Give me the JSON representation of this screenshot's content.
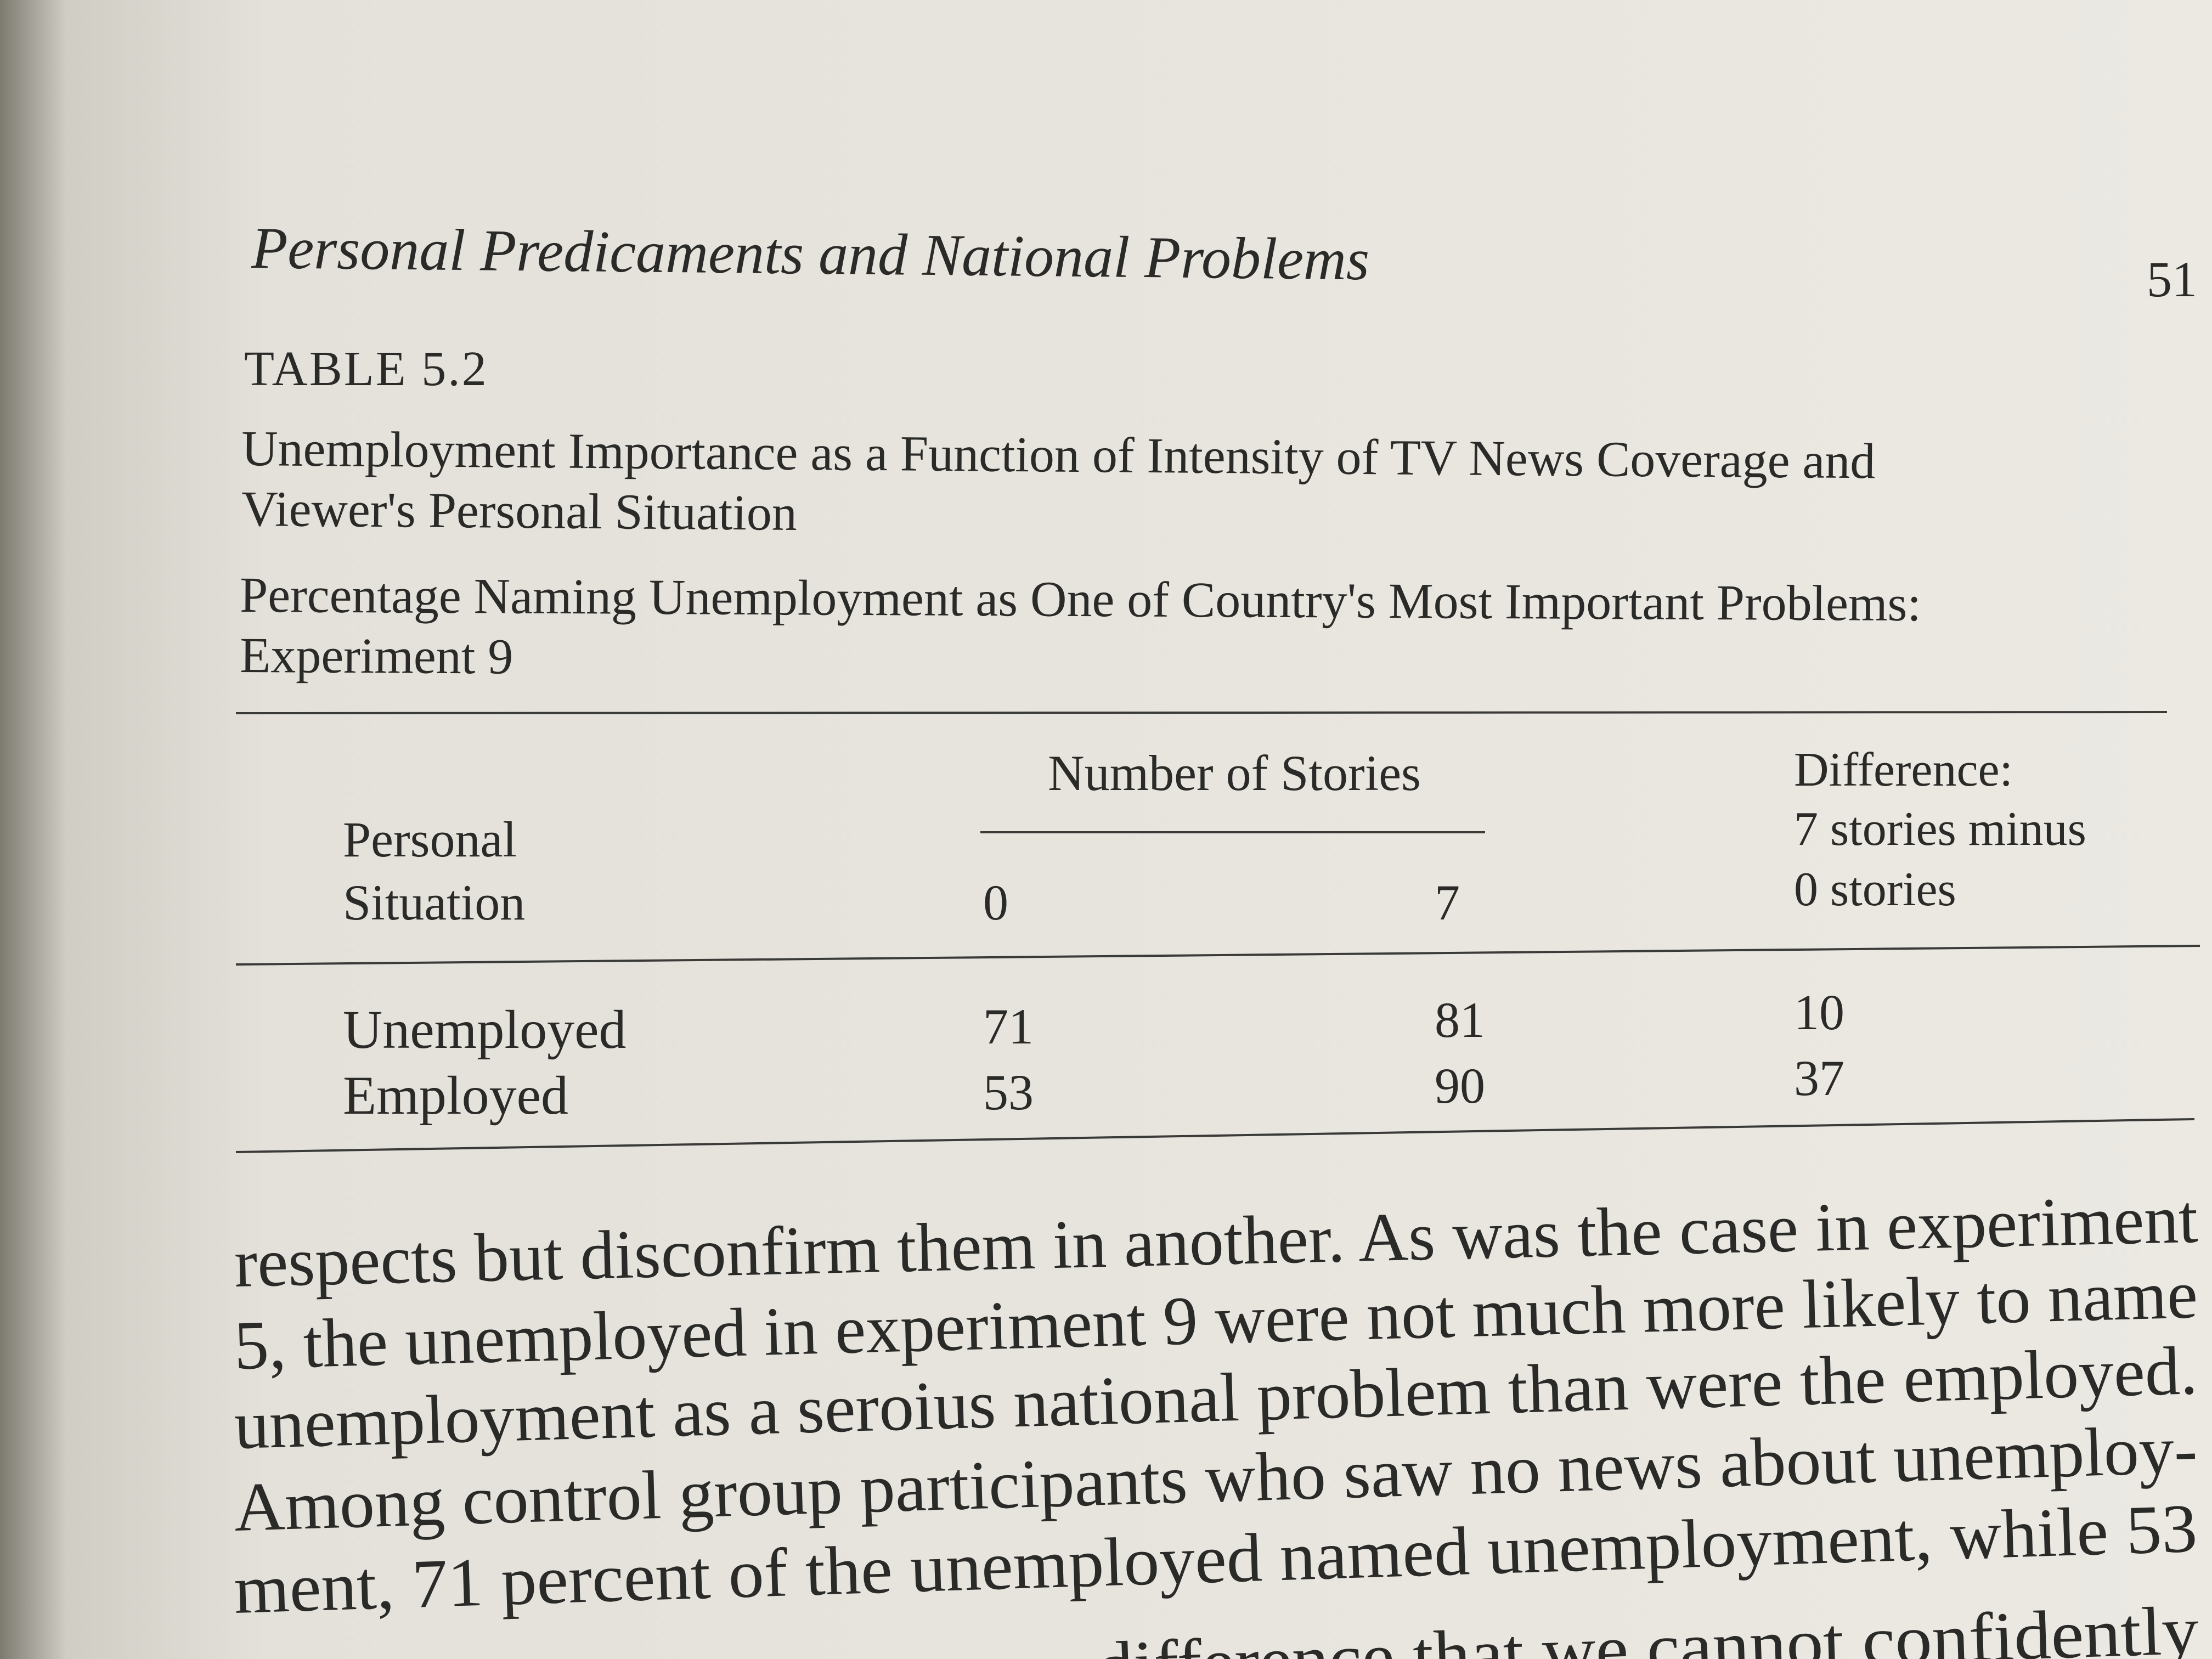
{
  "header": {
    "title": "Personal Predicaments and National Problems",
    "page_number": "51"
  },
  "table": {
    "label": "TABLE 5.2",
    "caption": [
      "Unemployment Importance as a Function of Intensity of TV News Coverage and",
      "Viewer's Personal Situation"
    ],
    "subcaption": [
      "Percentage Naming Unemployment as One of Country's Most Important Problems:",
      "Experiment 9"
    ],
    "group_header": "Number of Stories",
    "row_header": [
      "Personal",
      "Situation"
    ],
    "columns": [
      "0",
      "7"
    ],
    "difference_header": [
      "Difference:",
      "7 stories minus",
      "0 stories"
    ],
    "rows": [
      [
        "Unemployed",
        "71",
        "81",
        "10"
      ],
      [
        "Employed",
        "53",
        "90",
        "37"
      ]
    ]
  },
  "body": {
    "lines": [
      "respects but disconfirm them in another. As was the case in experiment",
      "5, the unemployed in experiment 9 were not much more likely to name",
      "unemployment as a seroius national problem than were the employed.",
      "Among control group participants who saw no news about unemploy-",
      "ment, 71 percent of the unemployed named unemployment, while 53",
      "difference that we cannot confidently"
    ]
  }
}
